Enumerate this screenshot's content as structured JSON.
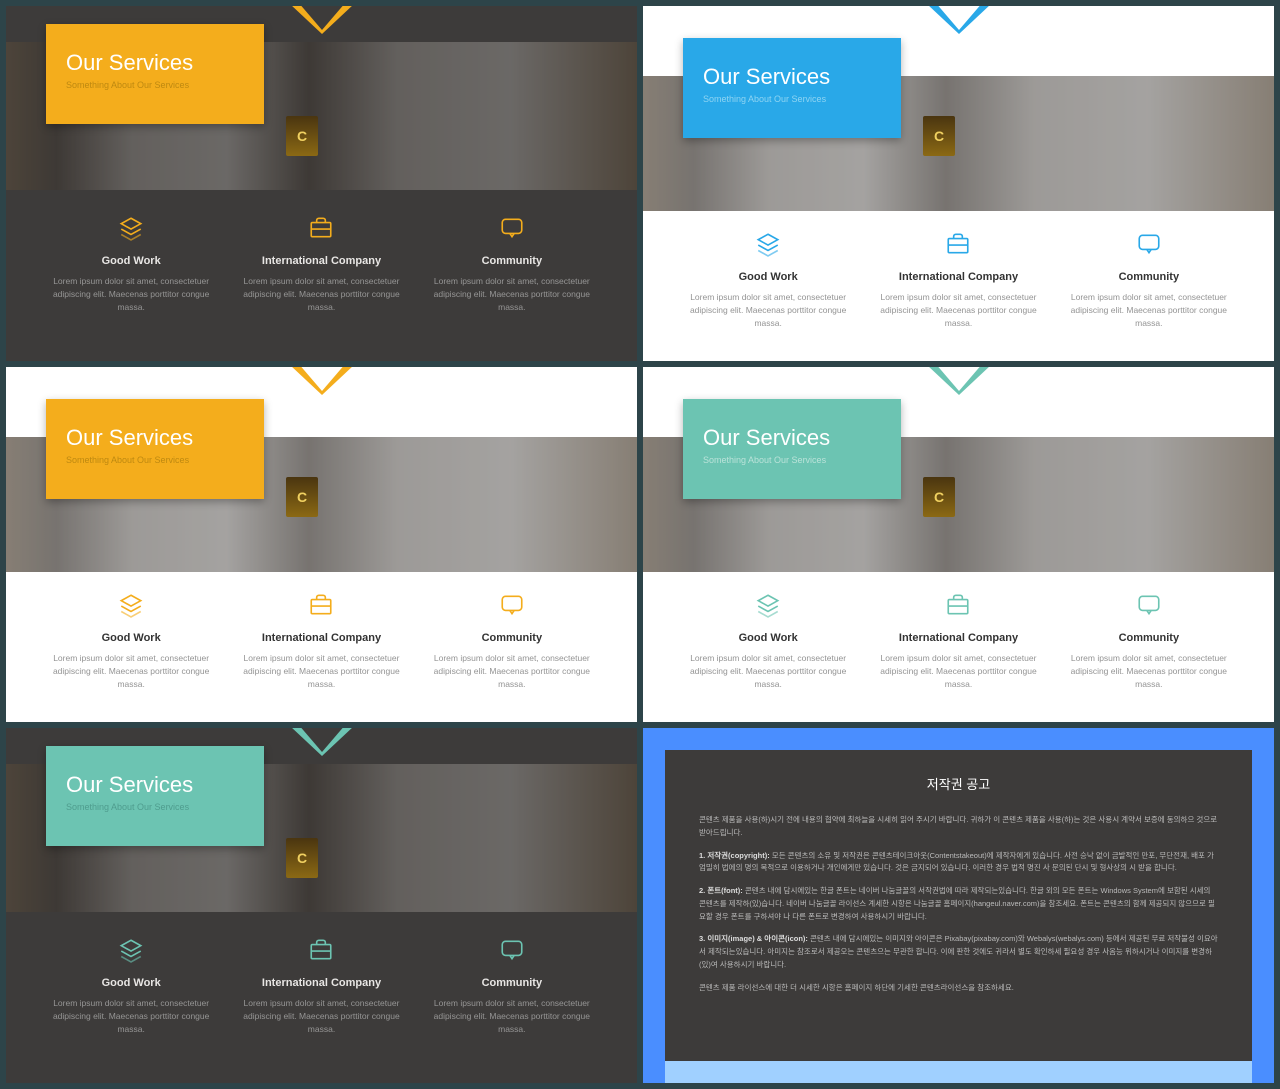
{
  "slides": [
    {
      "id": "s1",
      "variant": "dark",
      "accent": "#f4ad1c",
      "subtitle_color": "#b5830f"
    },
    {
      "id": "s2",
      "variant": "light",
      "accent": "#29a8e8",
      "subtitle_color": "#a0dcf5"
    },
    {
      "id": "s3",
      "variant": "light",
      "accent": "#f4ad1c",
      "subtitle_color": "#b5830f"
    },
    {
      "id": "s4",
      "variant": "light",
      "accent": "#6cc4b2",
      "subtitle_color": "#c8e8e0"
    },
    {
      "id": "s5",
      "variant": "dark",
      "accent": "#6cc4b2",
      "subtitle_color": "#4a9688"
    }
  ],
  "title": "Our Services",
  "subtitle": "Something About Our Services",
  "features": [
    {
      "icon": "layers",
      "title": "Good Work",
      "body": "Lorem ipsum dolor sit amet, consectetuer adipiscing elit. Maecenas porttitor congue massa."
    },
    {
      "icon": "briefcase",
      "title": "International Company",
      "body": "Lorem ipsum dolor sit amet, consectetuer adipiscing elit. Maecenas porttitor congue massa."
    },
    {
      "icon": "chat",
      "title": "Community",
      "body": "Lorem ipsum dolor sit amet, consectetuer adipiscing elit. Maecenas porttitor congue massa."
    }
  ],
  "badge_letter": "C",
  "copyright": {
    "title": "저작권 공고",
    "p1": "콘텐츠 제품을 사용(하)시기 전에 내용의 협약에 최하늘을 시세히 읽어 주시기 바랍니다. 귀하가 이 콘텐츠 제품을 사용(하)는 것은 사용시 계약서 보증에 동의하으 것으로 받아드립니다.",
    "p2_label": "1. 저작권(copyright):",
    "p2": "모든 콘텐츠의 소유 및 저작권은 콘텐츠테이크아웃(Contentstakeout)에 제작자에게 있습니다. 사전 승낙 없이 금발적인 만포, 무단전재, 배포 가 엄밀히 법에의 명의 목적으로 이용하거나 개인에게만 있습니다. 것은 금지되어 있습니다. 이러한 경우 법적 명진 사 문의된 단시 및 형사상의 시 받을 합니다.",
    "p3_label": "2. 폰트(font):",
    "p3": "콘텐츠 내에 담시에있는 한글 폰트는 네이버 나눔글꼴의 서작권법에 따라 제작되는있습니다. 한글 외의 모든 폰트는 Windows System에 보함된 시세의 콘텐츠를 제작하(있)습니다. 네이버 나눔글꼴 라이선스 계세한 시항은 나눔글꼴 홈페이지(hangeul.naver.com)을 참조세요. 폰트는 콘텐츠의 함께 제공되지 않으므로 필요할 경우 폰트를 구하셔야 나 다른 폰트로 변경하여 사용하시기 바랍니다.",
    "p4_label": "3. 이미지(image) & 아이콘(icon):",
    "p4": "콘텐츠 내에 담시에있는 이미지와 아이콘은 Pixabay(pixabay.com)와 Webalys(webalys.com) 등에서 제공된 무료 저작불성 이요아서 제작되는있습니다. 아미지는 참조로서 제공오는 콘텐츠으는 무관한 합니다. 이에 판한 것에도 귀라서 별도 확인하세 필요성 경우 사옴능 위하시거나 이미지를 변경하(있)여 사용하시기 바랍니다.",
    "p5": "콘텐츠 제품 라이선스에 대한 더 시세한 시항은 홈페이지 하단에 기세한 콘텐츠라이선스을 참조하세요."
  }
}
